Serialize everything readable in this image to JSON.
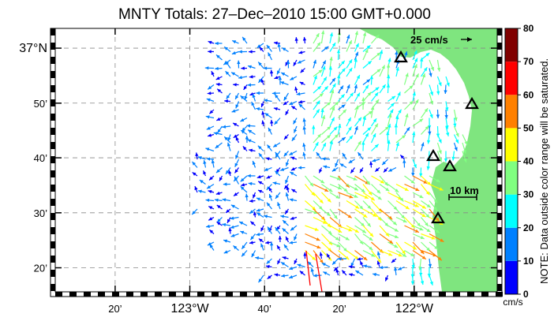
{
  "title": "MNTY Totals: 27–Dec–2010 15:00 GMT+0.000",
  "map": {
    "lon_ticks": [
      {
        "lon": -123.333,
        "label": "20’",
        "major": false
      },
      {
        "lon": -123.0,
        "label": "123°W",
        "major": true
      },
      {
        "lon": -122.667,
        "label": "40’",
        "major": false
      },
      {
        "lon": -122.333,
        "label": "20’",
        "major": false
      },
      {
        "lon": -122.0,
        "label": "122°W",
        "major": true
      }
    ],
    "lat_ticks": [
      {
        "lat": 37.0,
        "label": "37°N",
        "major": true
      },
      {
        "lat": 36.833,
        "label": "50’",
        "major": false
      },
      {
        "lat": 36.667,
        "label": "40’",
        "major": false
      },
      {
        "lat": 36.5,
        "label": "30’",
        "major": false
      },
      {
        "lat": 36.333,
        "label": "20’",
        "major": false
      }
    ],
    "land_color": "#7fe57f",
    "sea_color": "#ffffff",
    "sites": [
      {
        "name": "site-1",
        "lon": -122.12,
        "lat": 36.96
      },
      {
        "name": "site-2",
        "lon": -121.83,
        "lat": 36.64
      },
      {
        "name": "site-3",
        "lon": -121.9,
        "lat": 36.82
      },
      {
        "name": "site-4",
        "lon": -121.94,
        "lat": 36.6
      },
      {
        "name": "site-5",
        "lon": -121.9,
        "lat": 36.44
      }
    ],
    "reference_vector_label": "25 cm/s",
    "scale_bar_label": "10 km"
  },
  "colorbar": {
    "unit": "cm/s",
    "tick_labels": [
      "0",
      "10",
      "20",
      "30",
      "40",
      "50",
      "60",
      "70",
      "80"
    ],
    "colors": [
      "#0000ff",
      "#0080ff",
      "#00ffff",
      "#80ff80",
      "#ffff00",
      "#ff8000",
      "#ff0000",
      "#800000"
    ],
    "note": "NOTE: Data outside color range will be saturated."
  },
  "current_field": {
    "description_units": "cm/s",
    "vectors_summary": "Surface current vectors over Monterey Bay region; speeds mostly 5–40 cm/s, with strongest (40–70 cm/s) flows southeast of the bay entrance."
  }
}
